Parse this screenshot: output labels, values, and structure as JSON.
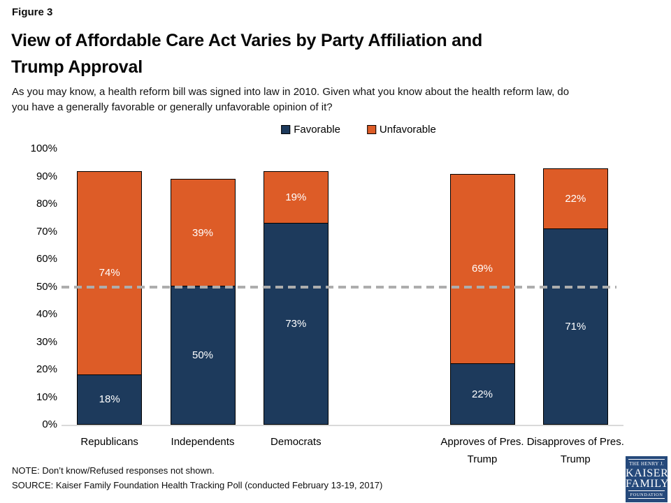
{
  "header": {
    "figure_label": "Figure 3",
    "title": "View of Affordable Care Act Varies by Party Affiliation and\nTrump Approval",
    "subtitle": "As you may know, a health reform bill was signed into law in 2010. Given what you know about the health reform law, do\nyou have a generally favorable or generally unfavorable opinion of it?"
  },
  "chart_data": {
    "type": "bar",
    "stacked": true,
    "categories": [
      "Republicans",
      "Independents",
      "Democrats",
      "Approves of Pres. Trump",
      "Disapproves of Pres. Trump"
    ],
    "series": [
      {
        "name": "Favorable",
        "color": "#1d3a5c",
        "values": [
          18,
          50,
          73,
          22,
          71
        ]
      },
      {
        "name": "Unfavorable",
        "color": "#dd5c27",
        "values": [
          74,
          39,
          19,
          69,
          22
        ]
      }
    ],
    "value_label_suffix": "%",
    "ylim": [
      0,
      100
    ],
    "y_tick_step": 10,
    "y_tick_suffix": "%",
    "grid": false,
    "legend_position": "top",
    "reference_line": {
      "value": 50,
      "style": "dashed",
      "color": "#adadad"
    },
    "layout": {
      "slot_indexes": [
        0,
        1,
        2,
        4,
        5
      ],
      "slot_count": 6
    }
  },
  "footer": {
    "note": "NOTE: Don’t know/Refused responses not shown.",
    "source": "SOURCE: Kaiser Family Foundation Health Tracking Poll (conducted February 13-19, 2017)"
  },
  "logo": {
    "line1": "THE HENRY J.",
    "line2": "KAISER",
    "line3": "FAMILY",
    "line4": "FOUNDATION"
  },
  "colors": {
    "favorable": "#1d3a5c",
    "unfavorable": "#dd5c27",
    "axis_line": "#d9d9d9",
    "reference_line": "#adadad",
    "logo_background": "#25497b"
  }
}
